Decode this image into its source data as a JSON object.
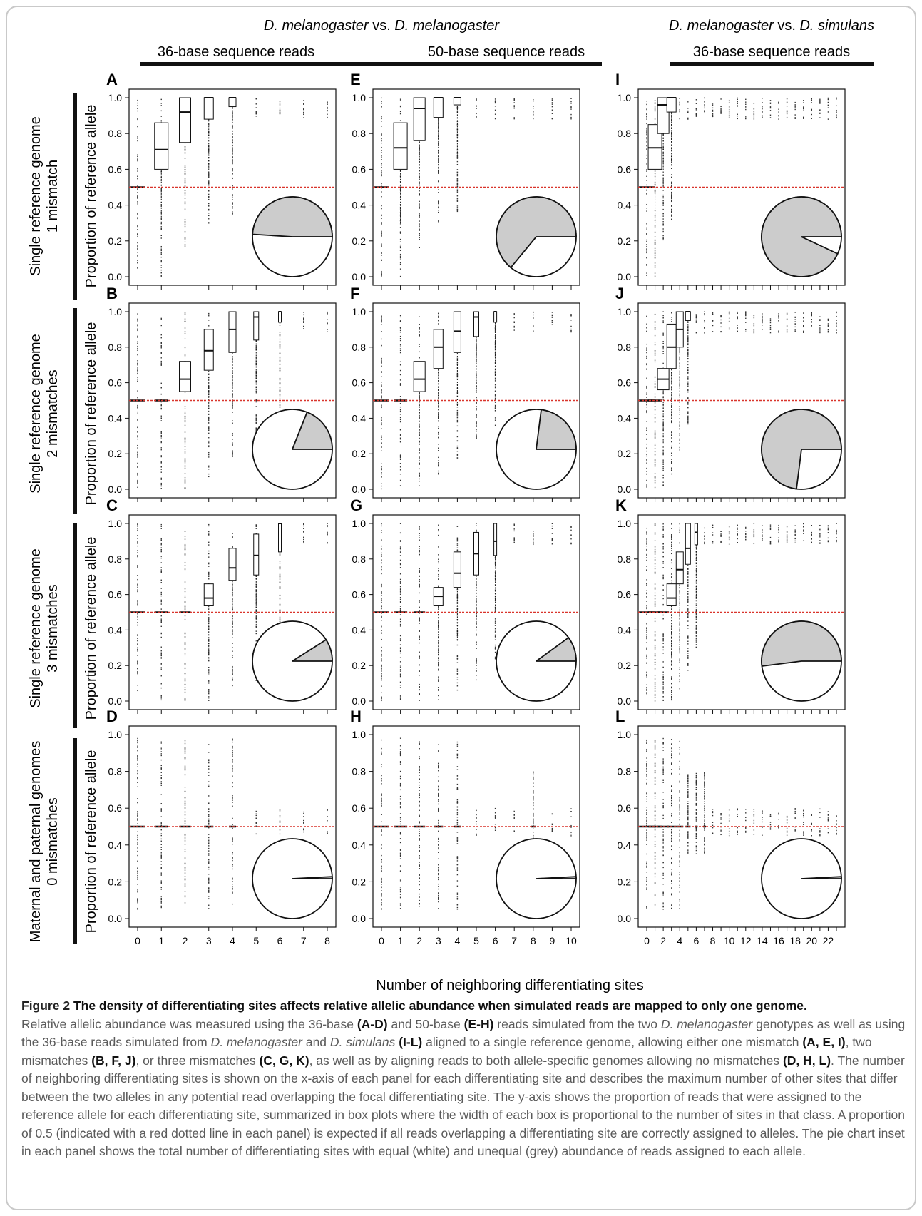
{
  "header": {
    "group1_species": "D. melanogaster",
    "group1_vs": " vs. ",
    "group1_species_b": "D. melanogaster",
    "group2_species": "D. melanogaster",
    "group2_vs": " vs. ",
    "group2_species_b": "D. simulans",
    "col_titles": [
      "36-base sequence reads",
      "50-base sequence reads",
      "36-base sequence reads"
    ]
  },
  "rows": [
    {
      "line1": "Single reference genome",
      "line2": "1 mismatch"
    },
    {
      "line1": "Single reference genome",
      "line2": "2 mismatches"
    },
    {
      "line1": "Single reference genome",
      "line2": "3 mismatches"
    },
    {
      "line1": "Maternal and paternal genomes",
      "line2": "0 mismatches"
    }
  ],
  "ylabel": "Proportion of reference allele",
  "xlabel": "Number of neighboring differentiating sites",
  "colors": {
    "reference_line": "#d9342b",
    "pie_grey": "#cccccc",
    "pie_white": "#ffffff"
  },
  "chart_data": [
    {
      "panel": "A",
      "type": "box",
      "xlim": [
        0,
        8
      ],
      "ylim": [
        0,
        1
      ],
      "reference_y": 0.5,
      "boxes": [
        {
          "x": 0,
          "median": 0.5
        },
        {
          "x": 1,
          "q1": 0.6,
          "median": 0.71,
          "q3": 0.86
        },
        {
          "x": 2,
          "q1": 0.75,
          "median": 0.92,
          "q3": 1.0
        },
        {
          "x": 3,
          "q1": 0.88,
          "median": 1.0,
          "q3": 1.0
        },
        {
          "x": 4,
          "q1": 0.95,
          "median": 1.0,
          "q3": 1.0
        }
      ],
      "pie_grey_fraction": 0.49
    },
    {
      "panel": "E",
      "type": "box",
      "xlim": [
        0,
        10
      ],
      "ylim": [
        0,
        1
      ],
      "reference_y": 0.5,
      "boxes": [
        {
          "x": 0,
          "median": 0.5
        },
        {
          "x": 1,
          "q1": 0.6,
          "median": 0.72,
          "q3": 0.86
        },
        {
          "x": 2,
          "q1": 0.76,
          "median": 0.94,
          "q3": 1.0
        },
        {
          "x": 3,
          "q1": 0.89,
          "median": 1.0,
          "q3": 1.0
        },
        {
          "x": 4,
          "q1": 0.96,
          "median": 1.0,
          "q3": 1.0
        }
      ],
      "pie_grey_fraction": 0.64
    },
    {
      "panel": "I",
      "type": "box",
      "xlim": [
        0,
        23
      ],
      "ylim": [
        0,
        1
      ],
      "reference_y": 0.5,
      "boxes": [
        {
          "x": 0,
          "median": 0.5
        },
        {
          "x": 1,
          "q1": 0.6,
          "median": 0.72,
          "q3": 0.85
        },
        {
          "x": 2,
          "q1": 0.8,
          "median": 0.96,
          "q3": 1.0
        },
        {
          "x": 3,
          "q1": 0.92,
          "median": 1.0,
          "q3": 1.0
        }
      ],
      "pie_grey_fraction": 0.93
    },
    {
      "panel": "B",
      "type": "box",
      "xlim": [
        0,
        8
      ],
      "ylim": [
        0,
        1
      ],
      "reference_y": 0.5,
      "boxes": [
        {
          "x": 0,
          "median": 0.5
        },
        {
          "x": 1,
          "median": 0.5
        },
        {
          "x": 2,
          "q1": 0.55,
          "median": 0.62,
          "q3": 0.72
        },
        {
          "x": 3,
          "q1": 0.67,
          "median": 0.78,
          "q3": 0.9
        },
        {
          "x": 4,
          "q1": 0.77,
          "median": 0.9,
          "q3": 1.0
        },
        {
          "x": 5,
          "q1": 0.84,
          "median": 0.97,
          "q3": 1.0
        },
        {
          "x": 6,
          "q1": 0.94,
          "median": 1.0,
          "q3": 1.0
        }
      ],
      "pie_grey_fraction": 0.19
    },
    {
      "panel": "F",
      "type": "box",
      "xlim": [
        0,
        10
      ],
      "ylim": [
        0,
        1
      ],
      "reference_y": 0.5,
      "boxes": [
        {
          "x": 0,
          "median": 0.5
        },
        {
          "x": 1,
          "median": 0.5
        },
        {
          "x": 2,
          "q1": 0.55,
          "median": 0.62,
          "q3": 0.72
        },
        {
          "x": 3,
          "q1": 0.68,
          "median": 0.8,
          "q3": 0.9
        },
        {
          "x": 4,
          "q1": 0.77,
          "median": 0.89,
          "q3": 1.0
        },
        {
          "x": 5,
          "q1": 0.86,
          "median": 0.97,
          "q3": 1.0
        },
        {
          "x": 6,
          "q1": 0.94,
          "median": 1.0,
          "q3": 1.0
        }
      ],
      "pie_grey_fraction": 0.23
    },
    {
      "panel": "J",
      "type": "box",
      "xlim": [
        0,
        23
      ],
      "ylim": [
        0,
        1
      ],
      "reference_y": 0.5,
      "boxes": [
        {
          "x": 0,
          "median": 0.5
        },
        {
          "x": 1,
          "median": 0.5
        },
        {
          "x": 2,
          "q1": 0.56,
          "median": 0.62,
          "q3": 0.68
        },
        {
          "x": 3,
          "q1": 0.68,
          "median": 0.8,
          "q3": 0.93
        },
        {
          "x": 4,
          "q1": 0.8,
          "median": 0.9,
          "q3": 1.0
        },
        {
          "x": 5,
          "q1": 0.95,
          "median": 1.0,
          "q3": 1.0
        }
      ],
      "pie_grey_fraction": 0.73
    },
    {
      "panel": "C",
      "type": "box",
      "xlim": [
        0,
        8
      ],
      "ylim": [
        0,
        1
      ],
      "reference_y": 0.5,
      "boxes": [
        {
          "x": 0,
          "median": 0.5
        },
        {
          "x": 1,
          "median": 0.5
        },
        {
          "x": 2,
          "median": 0.5
        },
        {
          "x": 3,
          "q1": 0.54,
          "median": 0.58,
          "q3": 0.66
        },
        {
          "x": 4,
          "q1": 0.68,
          "median": 0.75,
          "q3": 0.86
        },
        {
          "x": 5,
          "q1": 0.71,
          "median": 0.82,
          "q3": 0.94
        },
        {
          "x": 6,
          "q1": 0.84,
          "median": 1.0,
          "q3": 1.0
        }
      ],
      "pie_grey_fraction": 0.09
    },
    {
      "panel": "G",
      "type": "box",
      "xlim": [
        0,
        10
      ],
      "ylim": [
        0,
        1
      ],
      "reference_y": 0.5,
      "boxes": [
        {
          "x": 0,
          "median": 0.5
        },
        {
          "x": 1,
          "median": 0.5
        },
        {
          "x": 2,
          "median": 0.5
        },
        {
          "x": 3,
          "q1": 0.54,
          "median": 0.59,
          "q3": 0.64
        },
        {
          "x": 4,
          "q1": 0.64,
          "median": 0.72,
          "q3": 0.84
        },
        {
          "x": 5,
          "q1": 0.71,
          "median": 0.83,
          "q3": 0.95
        },
        {
          "x": 6,
          "q1": 0.82,
          "median": 0.9,
          "q3": 1.0
        }
      ],
      "pie_grey_fraction": 0.1
    },
    {
      "panel": "K",
      "type": "box",
      "xlim": [
        0,
        23
      ],
      "ylim": [
        0,
        1
      ],
      "reference_y": 0.5,
      "boxes": [
        {
          "x": 0,
          "median": 0.5
        },
        {
          "x": 1,
          "median": 0.5
        },
        {
          "x": 2,
          "median": 0.5
        },
        {
          "x": 3,
          "q1": 0.54,
          "median": 0.58,
          "q3": 0.66
        },
        {
          "x": 4,
          "q1": 0.66,
          "median": 0.74,
          "q3": 0.84
        },
        {
          "x": 5,
          "q1": 0.77,
          "median": 0.86,
          "q3": 1.0
        },
        {
          "x": 6,
          "q1": 0.88,
          "median": 0.95,
          "q3": 1.0
        }
      ],
      "pie_grey_fraction": 0.52
    },
    {
      "panel": "D",
      "type": "box",
      "xlim": [
        0,
        8
      ],
      "ylim": [
        0,
        1
      ],
      "reference_y": 0.5,
      "boxes": [
        {
          "x": 0,
          "median": 0.5
        },
        {
          "x": 1,
          "median": 0.5
        },
        {
          "x": 2,
          "median": 0.5
        },
        {
          "x": 3,
          "median": 0.5
        },
        {
          "x": 4,
          "median": 0.5
        }
      ],
      "pie_grey_fraction": 0.008
    },
    {
      "panel": "H",
      "type": "box",
      "xlim": [
        0,
        10
      ],
      "ylim": [
        0,
        1
      ],
      "reference_y": 0.5,
      "boxes": [
        {
          "x": 0,
          "median": 0.5
        },
        {
          "x": 1,
          "median": 0.5
        },
        {
          "x": 2,
          "median": 0.5
        },
        {
          "x": 3,
          "median": 0.5
        },
        {
          "x": 4,
          "median": 0.5
        },
        {
          "x": 8,
          "median": 0.5
        }
      ],
      "pie_grey_fraction": 0.008
    },
    {
      "panel": "L",
      "type": "box",
      "xlim": [
        0,
        23
      ],
      "ylim": [
        0,
        1
      ],
      "reference_y": 0.5,
      "boxes": [
        {
          "x": 0,
          "median": 0.5
        },
        {
          "x": 1,
          "median": 0.5
        },
        {
          "x": 2,
          "median": 0.5
        },
        {
          "x": 3,
          "median": 0.5
        },
        {
          "x": 4,
          "median": 0.5
        },
        {
          "x": 5,
          "median": 0.5
        },
        {
          "x": 6,
          "median": 0.5
        },
        {
          "x": 7,
          "median": 0.5
        }
      ],
      "pie_grey_fraction": 0.008
    }
  ],
  "yticks": [
    "0.0",
    "0.2",
    "0.4",
    "0.6",
    "0.8",
    "1.0"
  ],
  "xticks": {
    "D": [
      "0",
      "1",
      "2",
      "3",
      "4",
      "5",
      "6",
      "7",
      "8"
    ],
    "H": [
      "0",
      "1",
      "2",
      "3",
      "4",
      "5",
      "6",
      "7",
      "8",
      "9",
      "10"
    ],
    "L": [
      "0",
      "2",
      "4",
      "6",
      "8",
      "10",
      "12",
      "14",
      "16",
      "18",
      "20",
      "22"
    ]
  },
  "caption": {
    "fig_label": "Figure 2",
    "title": "The density of differentiating sites affects relative allelic abundance when simulated reads are mapped to only one genome.",
    "s1": "Relative allelic abundance was measured using the 36-base ",
    "s2": "(A-D)",
    "s3": " and 50-base ",
    "s4": "(E-H)",
    "s5": " reads simulated from the two ",
    "s6": "D. melanogaster",
    "s7": " genotypes as well as using the 36-base reads simulated from ",
    "s8": "D. melanogaster",
    "s9": " and ",
    "s10": "D. simulans",
    "s11": " ",
    "s12": "(I-L)",
    "s13": " aligned to a single reference genome, allowing either one mismatch ",
    "s14": "(A, E, I)",
    "s15": ", two mismatches ",
    "s16": "(B, F, J)",
    "s17": ", or three mismatches ",
    "s18": "(C, G, K)",
    "s19": ", as well as by aligning reads to both allele-specific genomes allowing no mismatches ",
    "s20": "(D, H, L)",
    "s21": ". The number of neighboring differentiating sites is shown on the x-axis of each panel for each differentiating site and describes the maximum number of other sites that differ between the two alleles in any potential read overlapping the focal differentiating site. The y-axis shows the proportion of reads that were assigned to the reference allele for each differentiating site, summarized in box plots where the width of each box is proportional to the number of sites in that class. A proportion of 0.5 (indicated with a red dotted line in each panel) is expected if all reads overlapping a differentiating site are correctly assigned to alleles. The pie chart inset in each panel shows the total number of differentiating sites with equal (white) and unequal (grey) abundance of reads assigned to each allele."
  }
}
